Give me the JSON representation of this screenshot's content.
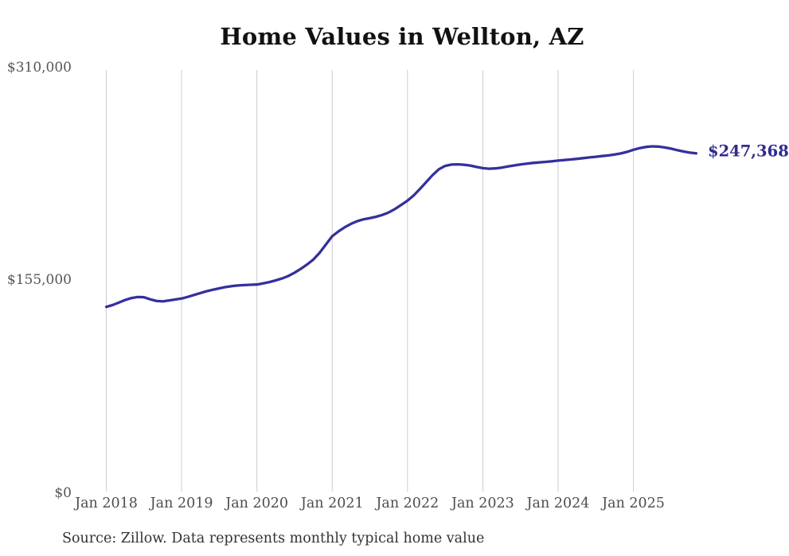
{
  "chart_data": {
    "type": "line",
    "title": "Home Values in Wellton, AZ",
    "source_note": "Source: Zillow. Data represents monthly typical home value",
    "end_label": "$247,368",
    "end_value": 247368,
    "x_start": "Jan 2018",
    "x_end": "Nov 2025",
    "frequency": "monthly",
    "x_tick_labels": [
      "Jan 2018",
      "Jan 2019",
      "Jan 2020",
      "Jan 2021",
      "Jan 2022",
      "Jan 2023",
      "Jan 2024",
      "Jan 2025"
    ],
    "y_ticks": [
      {
        "value": 0,
        "label": "$0"
      },
      {
        "value": 155000,
        "label": "$155,000"
      },
      {
        "value": 310000,
        "label": "$310,000"
      }
    ],
    "ylim": [
      0,
      310000
    ],
    "grid": "vertical-only",
    "legend": "none",
    "series": [
      {
        "name": "Typical home value",
        "unit": "USD",
        "values": [
          135500,
          136800,
          138600,
          140500,
          141900,
          142700,
          142500,
          141000,
          139800,
          139500,
          140200,
          140900,
          141600,
          142800,
          144200,
          145600,
          146900,
          148000,
          149000,
          149900,
          150600,
          151100,
          151400,
          151600,
          151800,
          152600,
          153600,
          154800,
          156200,
          158000,
          160400,
          163200,
          166400,
          170000,
          175000,
          181000,
          187000,
          190500,
          193500,
          196000,
          198000,
          199300,
          200200,
          201200,
          202500,
          204300,
          206800,
          209800,
          212900,
          216800,
          221500,
          226500,
          231500,
          235800,
          238200,
          239200,
          239400,
          239100,
          238500,
          237500,
          236600,
          236200,
          236400,
          237000,
          237800,
          238600,
          239300,
          239900,
          240400,
          240800,
          241200,
          241600,
          242100,
          242500,
          242900,
          243400,
          243900,
          244400,
          244900,
          245400,
          245900,
          246500,
          247300,
          248500,
          250000,
          251200,
          252100,
          252500,
          252300,
          251700,
          250800,
          249700,
          248700,
          247900,
          247368
        ]
      }
    ],
    "colors": {
      "line": "#34309d",
      "end_label": "#2e2b90",
      "grid": "#cccccc",
      "axis_text": "#555555",
      "title_text": "#111111",
      "source_text": "#333333"
    }
  }
}
